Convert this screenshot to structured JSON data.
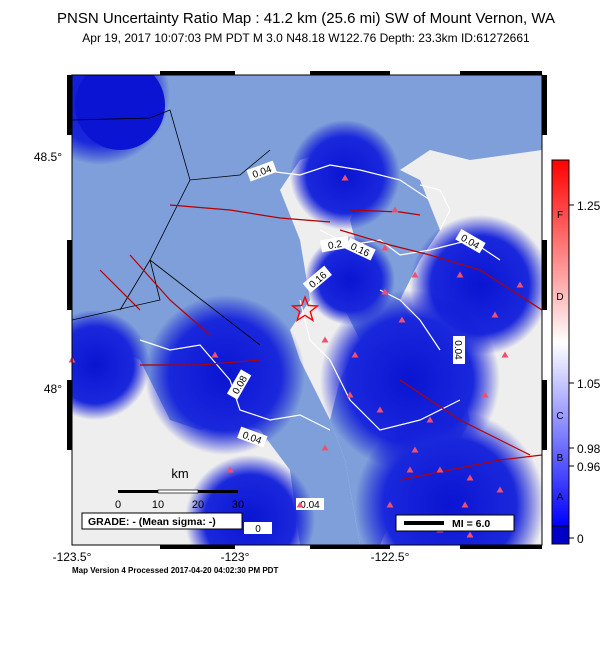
{
  "header": {
    "title": "PNSN Uncertainty Ratio Map : 41.2 km (25.6 mi) SW of Mount Vernon, WA",
    "subtitle": "Apr 19, 2017 10:07:03 PM PDT   M 3.0   N48.18 W122.76   Depth: 23.3km   ID:61272661"
  },
  "map": {
    "lon_ticks": [
      "-123.5°",
      "-123°",
      "-122.5°"
    ],
    "lat_ticks": [
      "48.5°",
      "48°"
    ],
    "contour_labels": [
      "0.04",
      "0.16",
      "0.2",
      "0.16",
      "0.04",
      "0.04",
      "0.08",
      "0.04",
      "0.04",
      "0"
    ],
    "epicenter_marker": "star-outline",
    "colors": {
      "water": "#7f9fda",
      "land_far": "#eeeeee",
      "land_near_station": "#0a14d2",
      "station": "#f0506e",
      "fault": "#b40000",
      "epicenter": "#ff0000"
    }
  },
  "scalebar": {
    "unit": "km",
    "ticks": [
      "0",
      "10",
      "20",
      "30"
    ]
  },
  "grade_box": "GRADE: - (Mean sigma: -)",
  "mi_legend": "MI = 6.0",
  "colorbar": {
    "values": [
      "1.25",
      "1.05",
      "0.98",
      "0.96",
      "0"
    ],
    "grades": [
      "F",
      "D",
      "C",
      "B",
      "A"
    ],
    "colors": {
      "top": "#ff0000",
      "mid": "#ffffff",
      "bottom": "#0000ff"
    }
  },
  "footer": "Map Version 4 Processed 2017-04-20 04:02:30 PM PDT"
}
